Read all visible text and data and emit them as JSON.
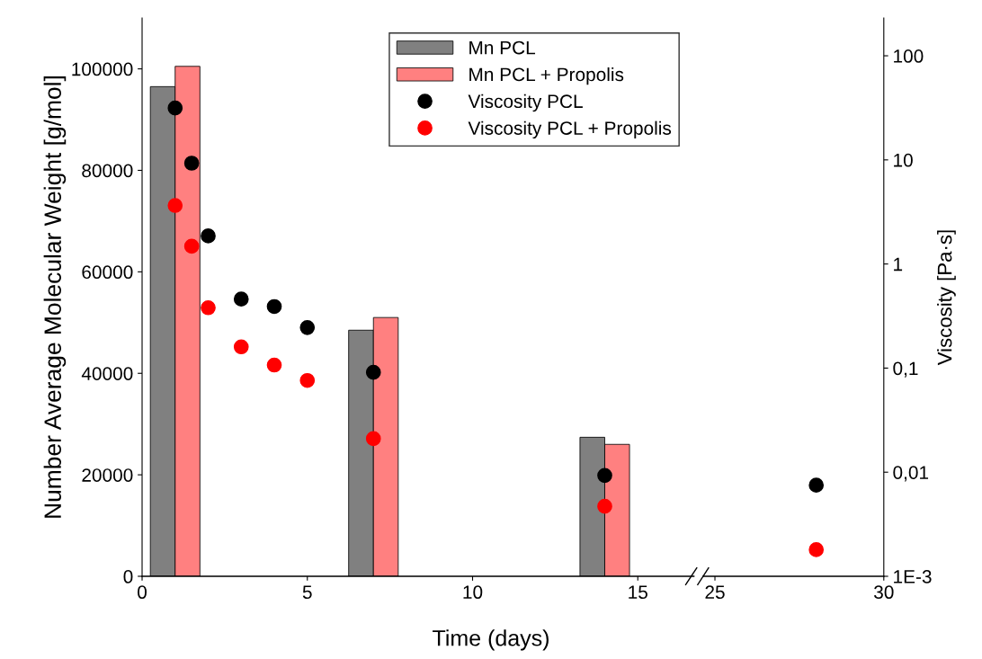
{
  "chart_data": [
    {
      "type": "bar",
      "xlabel": "Time (days)",
      "ylabel": "Number Average Molecular Weight [g/mol]",
      "xlim": [
        0,
        16.7
      ],
      "xticks": [
        0,
        5,
        10,
        15
      ],
      "ylim": [
        0,
        110000
      ],
      "yticks": [
        0,
        20000,
        40000,
        60000,
        80000,
        100000
      ],
      "y2lim": [
        0.001,
        230
      ],
      "log": "y2",
      "legend": "top right",
      "grid": false,
      "series": [
        {
          "name": "Mn PCL",
          "color": "#808080",
          "x": [
            1,
            7,
            14
          ],
          "values": [
            96500,
            48500,
            27400
          ]
        },
        {
          "name": "Mn PCL + Propolis",
          "color": "#ff8080",
          "x": [
            1,
            7,
            14
          ],
          "values": [
            100500,
            51000,
            26000
          ]
        },
        {
          "name": "Viscosity PCL",
          "type": "scatter",
          "axis": "y2",
          "color": "#000000",
          "marker": "circle",
          "x": [
            1,
            1.5,
            2,
            3,
            4,
            5,
            7,
            14
          ],
          "values": [
            31.5,
            9.3,
            1.86,
            0.46,
            0.39,
            0.245,
            0.091,
            0.0093
          ]
        },
        {
          "name": "Viscosity PCL + Propolis",
          "type": "scatter",
          "axis": "y2",
          "color": "#ff0000",
          "marker": "circle",
          "x": [
            1,
            1.5,
            2,
            3,
            4,
            5,
            7,
            14
          ],
          "values": [
            3.65,
            1.48,
            0.38,
            0.16,
            0.107,
            0.076,
            0.021,
            0.0047
          ]
        }
      ]
    },
    {
      "type": "scatter",
      "y2label": "Viscosity [Pa·s]",
      "xlim": [
        24.65,
        30
      ],
      "xticks": [
        25,
        30
      ],
      "y2lim": [
        0.001,
        230
      ],
      "log": "y2",
      "y2ticks": [
        {
          "value": 0.001,
          "label": "1E-3"
        },
        {
          "value": 0.01,
          "label": "0,01"
        },
        {
          "value": 0.1,
          "label": "0,1"
        },
        {
          "value": 1,
          "label": "1"
        },
        {
          "value": 10,
          "label": "10"
        },
        {
          "value": 100,
          "label": "100"
        }
      ],
      "grid": false,
      "series": [
        {
          "axis": "y2",
          "color": "#000000",
          "marker": "circle",
          "x": [
            28
          ],
          "values": [
            0.0075
          ]
        },
        {
          "axis": "y2",
          "color": "#ff0000",
          "marker": "circle",
          "x": [
            28
          ],
          "values": [
            0.0018
          ]
        }
      ]
    }
  ]
}
